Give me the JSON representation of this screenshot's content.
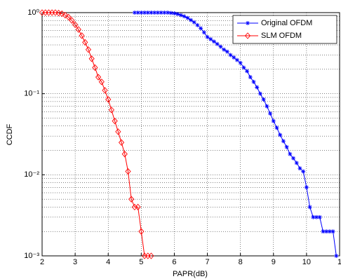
{
  "chart_data": {
    "type": "line",
    "xlabel": "PAPR(dB)",
    "ylabel": "CCDF",
    "xlim": [
      2,
      11
    ],
    "xticks": [
      2,
      3,
      4,
      5,
      6,
      7,
      8,
      9,
      10,
      {
        "value": 11,
        "label": "1"
      }
    ],
    "ylim": [
      0.001,
      1
    ],
    "yscale": "log",
    "yticks": [
      {
        "value": 0.001,
        "label": "10⁻³"
      },
      {
        "value": 0.01,
        "label": "10⁻²"
      },
      {
        "value": 0.1,
        "label": "10⁻¹"
      },
      {
        "value": 1,
        "label": "10⁰"
      }
    ],
    "grid": true,
    "legend": "upper right",
    "series": [
      {
        "name": "Original OFDM",
        "color": "#0000ff",
        "marker": "star",
        "x": [
          4.8,
          4.9,
          5.0,
          5.1,
          5.2,
          5.3,
          5.4,
          5.5,
          5.6,
          5.7,
          5.8,
          5.9,
          6.0,
          6.1,
          6.2,
          6.3,
          6.4,
          6.5,
          6.6,
          6.7,
          6.8,
          6.9,
          7.0,
          7.1,
          7.2,
          7.3,
          7.4,
          7.5,
          7.6,
          7.7,
          7.8,
          7.9,
          8.0,
          8.1,
          8.2,
          8.3,
          8.4,
          8.5,
          8.6,
          8.7,
          8.8,
          8.9,
          9.0,
          9.1,
          9.2,
          9.3,
          9.4,
          9.5,
          9.6,
          9.7,
          9.8,
          9.9,
          10.0,
          10.1,
          10.2,
          10.3,
          10.4,
          10.5,
          10.6,
          10.7,
          10.8,
          10.9
        ],
        "values": [
          1,
          1,
          1,
          1,
          1,
          1,
          1,
          1,
          1,
          1,
          1,
          0.99,
          0.98,
          0.96,
          0.93,
          0.9,
          0.86,
          0.81,
          0.76,
          0.7,
          0.64,
          0.57,
          0.5,
          0.47,
          0.44,
          0.41,
          0.38,
          0.35,
          0.33,
          0.3,
          0.28,
          0.26,
          0.24,
          0.21,
          0.19,
          0.16,
          0.14,
          0.12,
          0.1,
          0.085,
          0.07,
          0.057,
          0.046,
          0.038,
          0.031,
          0.026,
          0.022,
          0.018,
          0.016,
          0.014,
          0.012,
          0.011,
          0.007,
          0.004,
          0.003,
          0.003,
          0.003,
          0.002,
          0.002,
          0.002,
          0.002,
          0.001
        ]
      },
      {
        "name": "SLM OFDM",
        "color": "#ff0000",
        "marker": "diamond",
        "x": [
          2.0,
          2.1,
          2.2,
          2.3,
          2.4,
          2.5,
          2.6,
          2.7,
          2.8,
          2.9,
          3.0,
          3.1,
          3.2,
          3.3,
          3.4,
          3.5,
          3.6,
          3.7,
          3.8,
          3.9,
          4.0,
          4.1,
          4.2,
          4.3,
          4.4,
          4.5,
          4.6,
          4.7,
          4.8,
          4.9,
          5.0,
          5.1,
          5.2,
          5.3
        ],
        "values": [
          1,
          1,
          1,
          1,
          1,
          0.99,
          0.97,
          0.93,
          0.88,
          0.8,
          0.71,
          0.62,
          0.52,
          0.43,
          0.35,
          0.27,
          0.21,
          0.16,
          0.14,
          0.11,
          0.085,
          0.063,
          0.046,
          0.034,
          0.025,
          0.018,
          0.011,
          0.005,
          0.004,
          0.004,
          0.002,
          0.001,
          0.001,
          0.001
        ]
      }
    ]
  }
}
